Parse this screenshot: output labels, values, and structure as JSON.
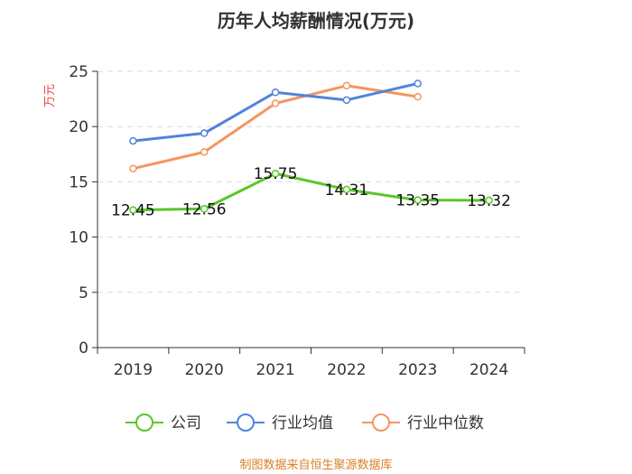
{
  "chart_data": {
    "type": "line",
    "title": "历年人均薪酬情况(万元)",
    "ylabel": "万元",
    "xlabel": "",
    "categories": [
      "2019",
      "2020",
      "2021",
      "2022",
      "2023",
      "2024"
    ],
    "ylim": [
      0,
      25
    ],
    "yticks": [
      0,
      5,
      10,
      15,
      20,
      25
    ],
    "grid": true,
    "legend_position": "bottom",
    "series": [
      {
        "name": "公司",
        "color": "#5ac729",
        "values": [
          12.45,
          12.56,
          15.75,
          14.31,
          13.35,
          13.32
        ],
        "labels": [
          "12.45",
          "12.56",
          "15.75",
          "14.31",
          "13.35",
          "13.32"
        ]
      },
      {
        "name": "行业均值",
        "color": "#4f84db",
        "values": [
          18.7,
          19.4,
          23.1,
          22.4,
          23.9,
          null
        ]
      },
      {
        "name": "行业中位数",
        "color": "#f5955f",
        "values": [
          16.2,
          17.7,
          22.1,
          23.7,
          22.7,
          null
        ]
      }
    ],
    "source": "制图数据来自恒生聚源数据库"
  },
  "colors": {
    "ylabel": "#e8413c",
    "source": "#d8822a",
    "axis": "#333333",
    "grid": "#d9d9d9"
  }
}
